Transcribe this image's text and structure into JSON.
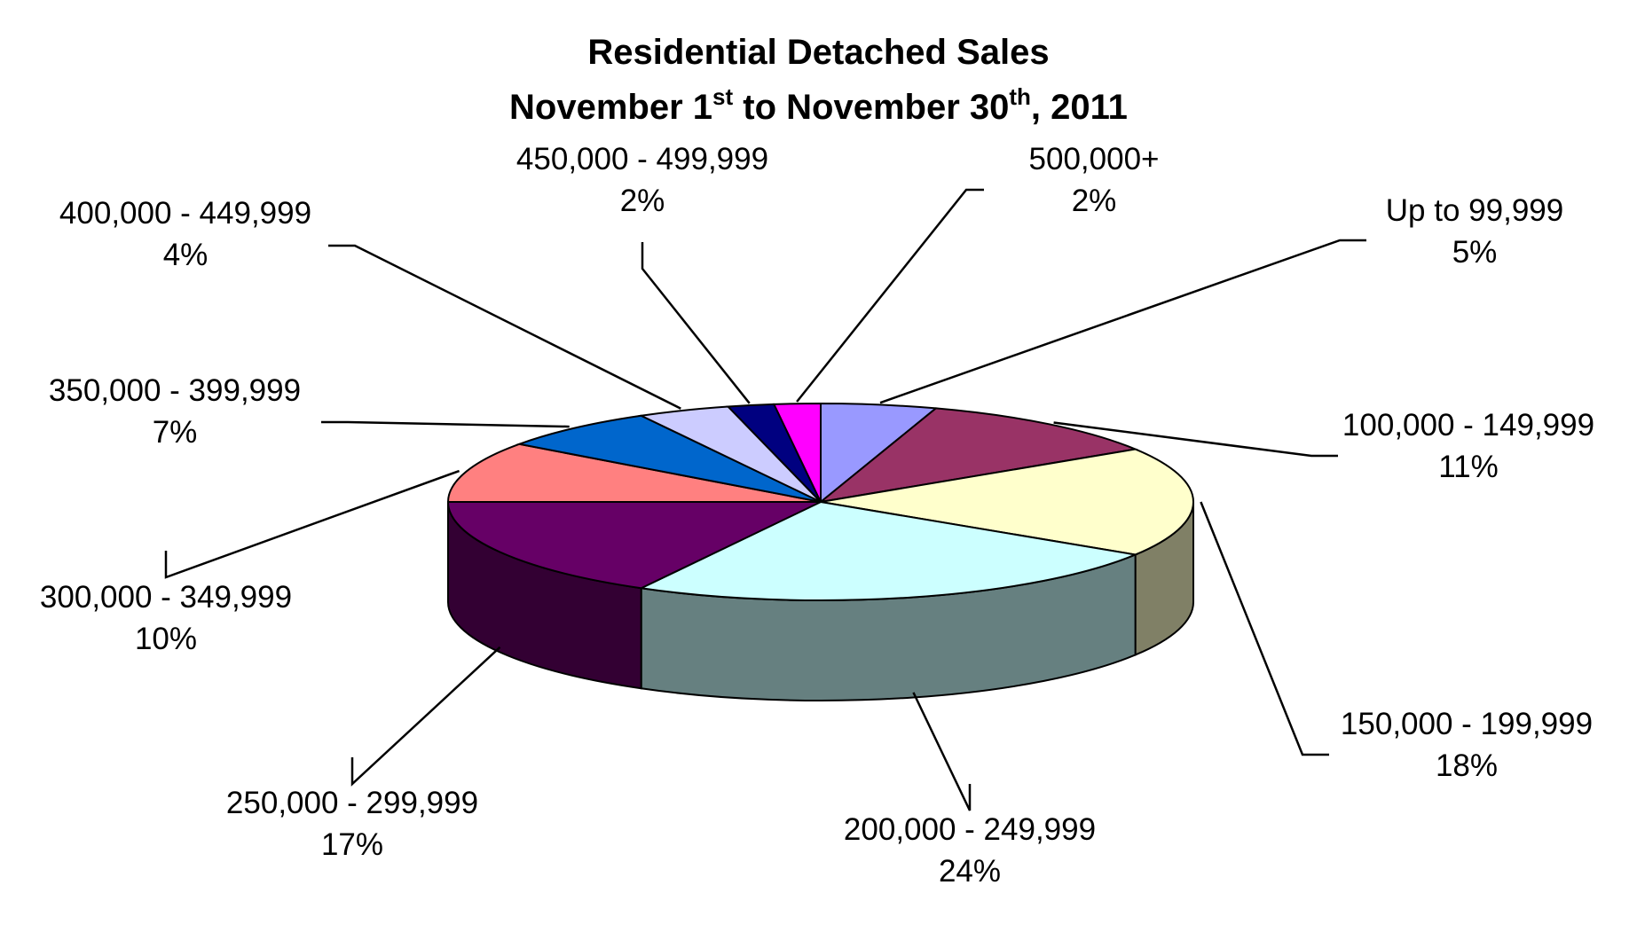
{
  "chart_data": {
    "type": "pie",
    "title": "Residential Detached Sales",
    "subtitle_parts": [
      "November 1",
      "st",
      " to November 30",
      "th",
      ", 2011"
    ],
    "slices": [
      {
        "label": "Up to 99,999",
        "value": 5,
        "pct": "5%",
        "color": "#9999FF"
      },
      {
        "label": "100,000 - 149,999",
        "value": 11,
        "pct": "11%",
        "color": "#993366"
      },
      {
        "label": "150,000 - 199,999",
        "value": 18,
        "pct": "18%",
        "color": "#FFFFCC"
      },
      {
        "label": "200,000 - 249,999",
        "value": 24,
        "pct": "24%",
        "color": "#CCFFFF"
      },
      {
        "label": "250,000 - 299,999",
        "value": 17,
        "pct": "17%",
        "color": "#660066"
      },
      {
        "label": "300,000 - 349,999",
        "value": 10,
        "pct": "10%",
        "color": "#FF8080"
      },
      {
        "label": "350,000 - 399,999",
        "value": 7,
        "pct": "7%",
        "color": "#0066CC"
      },
      {
        "label": "400,000 - 449,999",
        "value": 4,
        "pct": "4%",
        "color": "#CCCCFF"
      },
      {
        "label": "450,000 - 499,999",
        "value": 2,
        "pct": "2%",
        "color": "#000080"
      },
      {
        "label": "500,000+",
        "value": 2,
        "pct": "2%",
        "color": "#FF00FF"
      }
    ],
    "legend": "none"
  }
}
